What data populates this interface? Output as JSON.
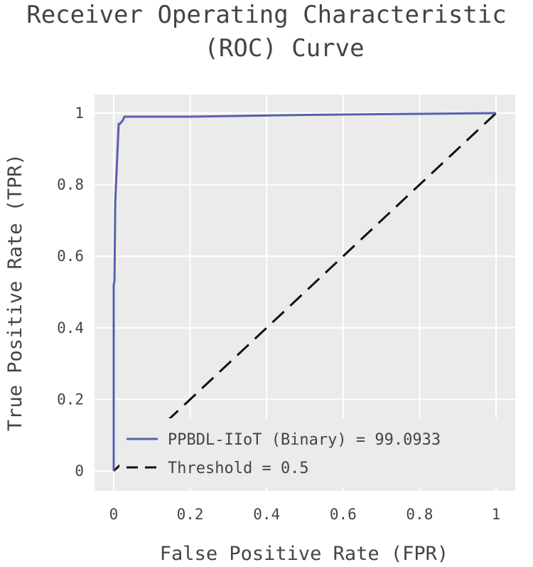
{
  "chart_data": {
    "type": "line",
    "title_lines": [
      "Receiver Operating Characteristic",
      "(ROC) Curve"
    ],
    "xlabel": "False Positive Rate (FPR)",
    "ylabel": "True Positive Rate (TPR)",
    "xlim": [
      0,
      1
    ],
    "ylim": [
      0,
      1
    ],
    "xticks": [
      0,
      0.2,
      0.4,
      0.6,
      0.8,
      1
    ],
    "xtick_labels": [
      "0",
      "0.2",
      "0.4",
      "0.6",
      "0.8",
      "1"
    ],
    "yticks": [
      0,
      0.2,
      0.4,
      0.6,
      0.8,
      1
    ],
    "ytick_labels": [
      "0",
      "0.2",
      "0.4",
      "0.6",
      "0.8",
      "1"
    ],
    "grid": true,
    "legend_position": "bottom-right",
    "series": [
      {
        "name": "PPBDL-IIoT (Binary) = 99.0933",
        "color": "#5a5fb0",
        "dash": "solid",
        "x": [
          0,
          0,
          0.002,
          0.004,
          0.013,
          0.016,
          0.024,
          0.028,
          0.03,
          0.2,
          0.5,
          1.0
        ],
        "y": [
          0,
          0.52,
          0.53,
          0.75,
          0.97,
          0.97,
          0.98,
          0.99,
          0.99,
          0.99,
          0.995,
          1.0
        ]
      },
      {
        "name": "Threshold = 0.5",
        "color": "#111111",
        "dash": "dashed",
        "x": [
          0,
          1
        ],
        "y": [
          0,
          1
        ]
      }
    ]
  },
  "colors": {
    "panel_background": "#ebebeb",
    "grid": "#ffffff",
    "text": "#444444"
  }
}
